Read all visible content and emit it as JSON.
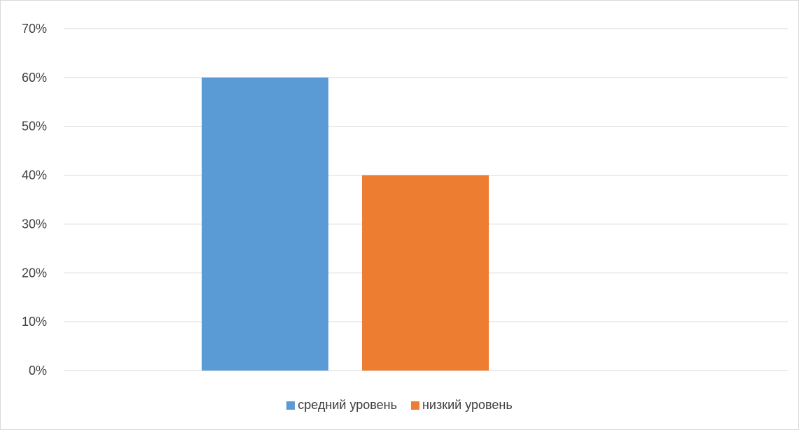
{
  "chart_data": {
    "type": "bar",
    "categories": [
      ""
    ],
    "series": [
      {
        "name": "средний уровень",
        "values": [
          60
        ],
        "color": "#5b9bd5"
      },
      {
        "name": "низкий уровень",
        "values": [
          40
        ],
        "color": "#ed7d31"
      }
    ],
    "ylim": [
      0,
      70
    ],
    "yticks": [
      "0%",
      "10%",
      "20%",
      "30%",
      "40%",
      "50%",
      "60%",
      "70%"
    ],
    "ytick_values": [
      0,
      10,
      20,
      30,
      40,
      50,
      60,
      70
    ],
    "grid": true,
    "legend_position": "bottom",
    "gridline_color": "#d9d9d9"
  }
}
